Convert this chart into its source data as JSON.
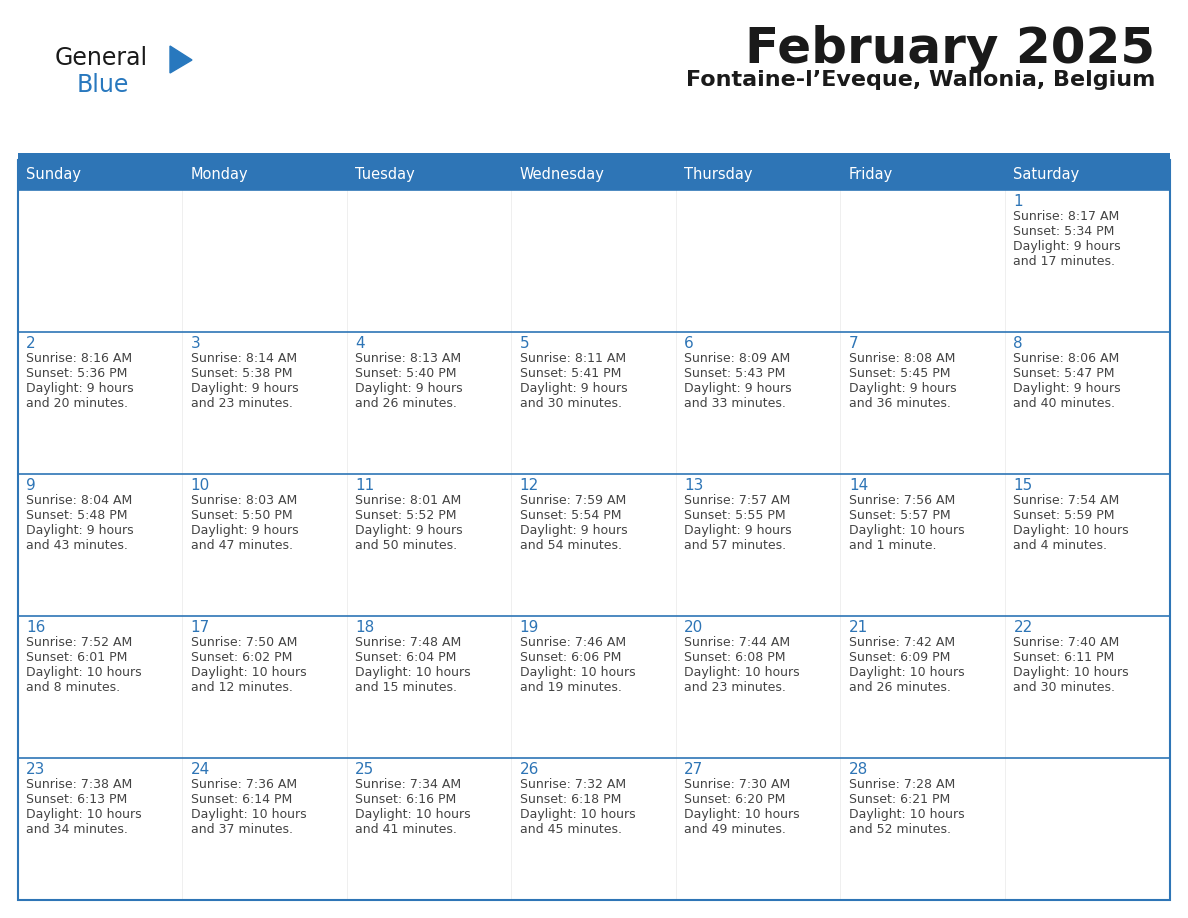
{
  "title": "February 2025",
  "subtitle": "Fontaine-l’Eveque, Wallonia, Belgium",
  "days_of_week": [
    "Sunday",
    "Monday",
    "Tuesday",
    "Wednesday",
    "Thursday",
    "Friday",
    "Saturday"
  ],
  "header_bg": "#2E75B6",
  "header_text": "#FFFFFF",
  "cell_bg": "#EFEFEF",
  "cell_bg2": "#FFFFFF",
  "border_color": "#2E75B6",
  "title_color": "#1A1A1A",
  "subtitle_color": "#1A1A1A",
  "text_color": "#444444",
  "day_num_color": "#2E75B6",
  "weeks": [
    [
      {
        "day": null
      },
      {
        "day": null
      },
      {
        "day": null
      },
      {
        "day": null
      },
      {
        "day": null
      },
      {
        "day": null
      },
      {
        "day": 1,
        "sunrise": "8:17 AM",
        "sunset": "5:34 PM",
        "daylight": "9 hours and 17 minutes."
      }
    ],
    [
      {
        "day": 2,
        "sunrise": "8:16 AM",
        "sunset": "5:36 PM",
        "daylight": "9 hours and 20 minutes."
      },
      {
        "day": 3,
        "sunrise": "8:14 AM",
        "sunset": "5:38 PM",
        "daylight": "9 hours and 23 minutes."
      },
      {
        "day": 4,
        "sunrise": "8:13 AM",
        "sunset": "5:40 PM",
        "daylight": "9 hours and 26 minutes."
      },
      {
        "day": 5,
        "sunrise": "8:11 AM",
        "sunset": "5:41 PM",
        "daylight": "9 hours and 30 minutes."
      },
      {
        "day": 6,
        "sunrise": "8:09 AM",
        "sunset": "5:43 PM",
        "daylight": "9 hours and 33 minutes."
      },
      {
        "day": 7,
        "sunrise": "8:08 AM",
        "sunset": "5:45 PM",
        "daylight": "9 hours and 36 minutes."
      },
      {
        "day": 8,
        "sunrise": "8:06 AM",
        "sunset": "5:47 PM",
        "daylight": "9 hours and 40 minutes."
      }
    ],
    [
      {
        "day": 9,
        "sunrise": "8:04 AM",
        "sunset": "5:48 PM",
        "daylight": "9 hours and 43 minutes."
      },
      {
        "day": 10,
        "sunrise": "8:03 AM",
        "sunset": "5:50 PM",
        "daylight": "9 hours and 47 minutes."
      },
      {
        "day": 11,
        "sunrise": "8:01 AM",
        "sunset": "5:52 PM",
        "daylight": "9 hours and 50 minutes."
      },
      {
        "day": 12,
        "sunrise": "7:59 AM",
        "sunset": "5:54 PM",
        "daylight": "9 hours and 54 minutes."
      },
      {
        "day": 13,
        "sunrise": "7:57 AM",
        "sunset": "5:55 PM",
        "daylight": "9 hours and 57 minutes."
      },
      {
        "day": 14,
        "sunrise": "7:56 AM",
        "sunset": "5:57 PM",
        "daylight": "10 hours and 1 minute."
      },
      {
        "day": 15,
        "sunrise": "7:54 AM",
        "sunset": "5:59 PM",
        "daylight": "10 hours and 4 minutes."
      }
    ],
    [
      {
        "day": 16,
        "sunrise": "7:52 AM",
        "sunset": "6:01 PM",
        "daylight": "10 hours and 8 minutes."
      },
      {
        "day": 17,
        "sunrise": "7:50 AM",
        "sunset": "6:02 PM",
        "daylight": "10 hours and 12 minutes."
      },
      {
        "day": 18,
        "sunrise": "7:48 AM",
        "sunset": "6:04 PM",
        "daylight": "10 hours and 15 minutes."
      },
      {
        "day": 19,
        "sunrise": "7:46 AM",
        "sunset": "6:06 PM",
        "daylight": "10 hours and 19 minutes."
      },
      {
        "day": 20,
        "sunrise": "7:44 AM",
        "sunset": "6:08 PM",
        "daylight": "10 hours and 23 minutes."
      },
      {
        "day": 21,
        "sunrise": "7:42 AM",
        "sunset": "6:09 PM",
        "daylight": "10 hours and 26 minutes."
      },
      {
        "day": 22,
        "sunrise": "7:40 AM",
        "sunset": "6:11 PM",
        "daylight": "10 hours and 30 minutes."
      }
    ],
    [
      {
        "day": 23,
        "sunrise": "7:38 AM",
        "sunset": "6:13 PM",
        "daylight": "10 hours and 34 minutes."
      },
      {
        "day": 24,
        "sunrise": "7:36 AM",
        "sunset": "6:14 PM",
        "daylight": "10 hours and 37 minutes."
      },
      {
        "day": 25,
        "sunrise": "7:34 AM",
        "sunset": "6:16 PM",
        "daylight": "10 hours and 41 minutes."
      },
      {
        "day": 26,
        "sunrise": "7:32 AM",
        "sunset": "6:18 PM",
        "daylight": "10 hours and 45 minutes."
      },
      {
        "day": 27,
        "sunrise": "7:30 AM",
        "sunset": "6:20 PM",
        "daylight": "10 hours and 49 minutes."
      },
      {
        "day": 28,
        "sunrise": "7:28 AM",
        "sunset": "6:21 PM",
        "daylight": "10 hours and 52 minutes."
      },
      {
        "day": null
      }
    ]
  ],
  "fig_width": 11.88,
  "fig_height": 9.18,
  "dpi": 100
}
